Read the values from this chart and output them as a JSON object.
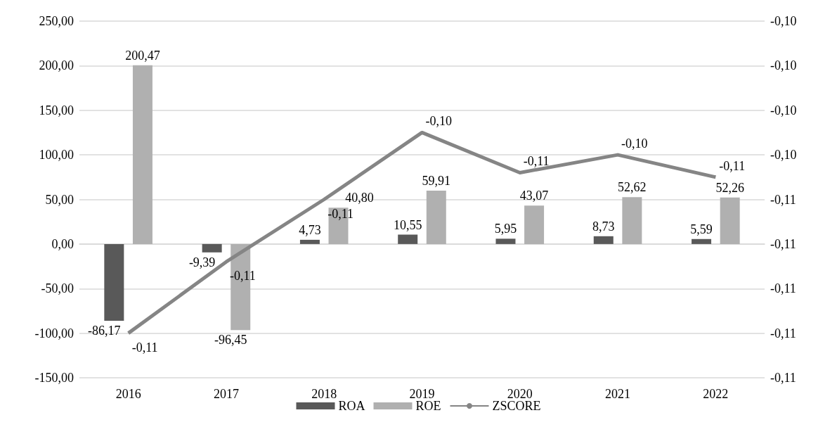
{
  "chart_data": {
    "type": "bar",
    "categories": [
      "2016",
      "2017",
      "2018",
      "2019",
      "2020",
      "2021",
      "2022"
    ],
    "series": [
      {
        "name": "ROA",
        "color": "#595959",
        "values": [
          -86.17,
          -9.39,
          4.73,
          10.55,
          5.95,
          8.73,
          5.59
        ],
        "value_labels": [
          "-86,17",
          "-9,39",
          "4,73",
          "10,55",
          "5,95",
          "8,73",
          "5,59"
        ]
      },
      {
        "name": "ROE",
        "color": "#b0b0b0",
        "values": [
          200.47,
          -96.45,
          40.8,
          59.91,
          43.07,
          52.62,
          52.26
        ],
        "value_labels": [
          "200,47",
          "-96,45",
          "40,80",
          "59,91",
          "43,07",
          "52,62",
          "52,26"
        ]
      },
      {
        "name": "ZSCORE",
        "type": "line",
        "axis": "y2",
        "color": "#858585",
        "marker": "none",
        "values": [
          -0.1088,
          -0.1072,
          -0.1058,
          -0.1043,
          -0.1052,
          -0.1048,
          -0.1053
        ],
        "value_labels": [
          "-0,11",
          "-0,11",
          "-0,11",
          "-0,10",
          "-0,11",
          "-0,10",
          "-0,11"
        ]
      }
    ],
    "ylim": [
      -150,
      250
    ],
    "yticks": [
      {
        "value": -150,
        "label": "-150,00"
      },
      {
        "value": -100,
        "label": "-100,00"
      },
      {
        "value": -50,
        "label": "-50,00"
      },
      {
        "value": 0,
        "label": "0,00"
      },
      {
        "value": 50,
        "label": "50,00"
      },
      {
        "value": 100,
        "label": "100,00"
      },
      {
        "value": 150,
        "label": "150,00"
      },
      {
        "value": 200,
        "label": "200,00"
      },
      {
        "value": 250,
        "label": "250,00"
      }
    ],
    "y2lim": [
      -0.1098,
      -0.1018
    ],
    "y2ticks": [
      {
        "value": -0.1098,
        "label": "-0,11"
      },
      {
        "value": -0.1088,
        "label": "-0,11"
      },
      {
        "value": -0.1078,
        "label": "-0,11"
      },
      {
        "value": -0.1068,
        "label": "-0,11"
      },
      {
        "value": -0.1058,
        "label": "-0,11"
      },
      {
        "value": -0.1048,
        "label": "-0,10"
      },
      {
        "value": -0.1038,
        "label": "-0,10"
      },
      {
        "value": -0.1028,
        "label": "-0,10"
      },
      {
        "value": -0.1018,
        "label": "-0,10"
      }
    ],
    "grid": "y",
    "legend": "bottom"
  }
}
